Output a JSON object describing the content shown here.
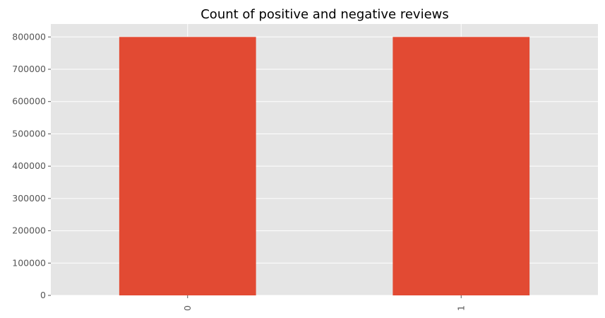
{
  "chart_data": {
    "type": "bar",
    "title": "Count of positive and negative reviews",
    "categories": [
      "0",
      "1"
    ],
    "values": [
      800000,
      800000
    ],
    "xlabel": "",
    "ylabel": "",
    "ylim": [
      0,
      840000
    ],
    "yticks": [
      0,
      100000,
      200000,
      300000,
      400000,
      500000,
      600000,
      700000,
      800000
    ],
    "grid": true,
    "legend": "none",
    "colors": {
      "bar": "#E24A33",
      "plot_background": "#E5E5E5",
      "grid": "#FFFFFF",
      "tick_text": "#555555",
      "title_text": "#000000"
    }
  }
}
